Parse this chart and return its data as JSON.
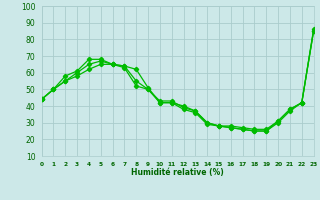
{
  "xlabel": "Humidité relative (%)",
  "ylabel": "",
  "bg_color": "#cce8e8",
  "grid_color": "#aacccc",
  "line_color": "#00bb00",
  "series1_x": [
    0,
    1,
    2,
    3,
    4,
    5,
    6,
    7,
    8,
    9,
    10,
    11,
    12,
    13,
    14,
    15,
    16,
    17,
    18,
    19,
    20,
    21,
    22,
    23
  ],
  "series1_y": [
    44,
    50,
    58,
    61,
    68,
    68,
    65,
    64,
    62,
    51,
    42,
    42,
    38,
    36,
    29,
    28,
    28,
    27,
    26,
    26,
    31,
    38,
    42,
    85
  ],
  "series2_x": [
    0,
    1,
    2,
    3,
    4,
    5,
    6,
    7,
    8,
    9,
    10,
    11,
    12,
    13,
    14,
    15,
    16,
    17,
    18,
    19,
    20,
    21,
    22,
    23
  ],
  "series2_y": [
    44,
    50,
    55,
    60,
    65,
    67,
    65,
    64,
    55,
    50,
    42,
    42,
    40,
    37,
    30,
    28,
    27,
    26,
    25,
    25,
    31,
    38,
    42,
    85
  ],
  "series3_x": [
    0,
    1,
    2,
    3,
    4,
    5,
    6,
    7,
    8,
    9,
    10,
    11,
    12,
    13,
    14,
    15,
    16,
    17,
    18,
    19,
    20,
    21,
    22,
    23
  ],
  "series3_y": [
    44,
    50,
    55,
    58,
    62,
    65,
    65,
    63,
    52,
    50,
    43,
    43,
    39,
    37,
    30,
    28,
    27,
    26,
    25,
    25,
    30,
    37,
    42,
    86
  ],
  "ylim": [
    10,
    100
  ],
  "xlim": [
    0,
    23
  ],
  "yticks": [
    10,
    20,
    30,
    40,
    50,
    60,
    70,
    80,
    90,
    100
  ],
  "xticks": [
    0,
    1,
    2,
    3,
    4,
    5,
    6,
    7,
    8,
    9,
    10,
    11,
    12,
    13,
    14,
    15,
    16,
    17,
    18,
    19,
    20,
    21,
    22,
    23
  ],
  "xlabel_fontsize": 5.5,
  "ytick_fontsize": 5.5,
  "xtick_fontsize": 4.2
}
